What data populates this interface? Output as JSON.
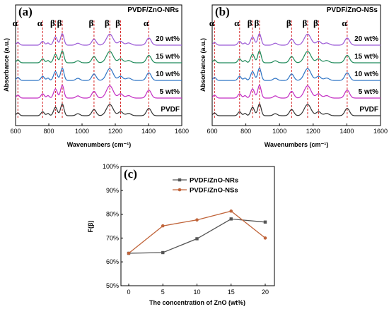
{
  "chart_data": [
    {
      "panel": "(a)",
      "type": "line",
      "title": "PVDF/ZnO-NRs",
      "xlabel": "Wavenumbers (cm⁻¹)",
      "ylabel": "Absorbance (a.u.)",
      "xlim": [
        600,
        1600
      ],
      "xticks": [
        "600",
        "800",
        "1000",
        "1200",
        "1400",
        "1600"
      ],
      "series_labels": [
        "20 wt%",
        "15 wt%",
        "10 wt%",
        "5 wt%",
        "PVDF"
      ],
      "colors": [
        "#9b59d6",
        "#1f8a5a",
        "#2d73c4",
        "#c32dc3",
        "#333333"
      ],
      "peak_lines": [
        {
          "x": 614,
          "label": "α"
        },
        {
          "x": 763,
          "label": "α"
        },
        {
          "x": 840,
          "label": "β"
        },
        {
          "x": 881,
          "label": "β"
        },
        {
          "x": 1072,
          "label": "β"
        },
        {
          "x": 1167,
          "label": "β"
        },
        {
          "x": 1232,
          "label": "β"
        },
        {
          "x": 1402,
          "label": "α"
        }
      ]
    },
    {
      "panel": "(b)",
      "type": "line",
      "title": "PVDF/ZnO-NSs",
      "xlabel": "Wavenumbers (cm⁻¹)",
      "ylabel": "Absorbance (a.u.)",
      "xlim": [
        600,
        1600
      ],
      "xticks": [
        "600",
        "800",
        "1000",
        "1200",
        "1400",
        "1600"
      ],
      "series_labels": [
        "20 wt%",
        "15 wt%",
        "10 wt%",
        "5 wt%",
        "PVDF"
      ],
      "colors": [
        "#9b59d6",
        "#1f8a5a",
        "#2d73c4",
        "#c32dc3",
        "#333333"
      ],
      "peak_lines": [
        {
          "x": 614,
          "label": "α"
        },
        {
          "x": 763,
          "label": "α"
        },
        {
          "x": 840,
          "label": "β"
        },
        {
          "x": 881,
          "label": "β"
        },
        {
          "x": 1072,
          "label": "β"
        },
        {
          "x": 1167,
          "label": "β"
        },
        {
          "x": 1232,
          "label": "β"
        },
        {
          "x": 1402,
          "label": "α"
        }
      ]
    },
    {
      "panel": "(c)",
      "type": "line",
      "xlabel": "The concentration of ZnO (wt%)",
      "ylabel": "F(β)",
      "x": [
        0,
        5,
        10,
        15,
        20
      ],
      "xticks": [
        "0",
        "5",
        "10",
        "15",
        "20"
      ],
      "yticks": [
        "50%",
        "60%",
        "70%",
        "80%",
        "90%",
        "100%"
      ],
      "ylim": [
        50,
        100
      ],
      "legend_position": "top-right",
      "series": [
        {
          "name": "PVDF/ZnO-NRs",
          "color": "#555555",
          "marker": "square",
          "values": [
            63.6,
            63.9,
            69.7,
            78.0,
            76.7
          ]
        },
        {
          "name": "PVDF/ZnO-NSs",
          "color": "#c0643a",
          "marker": "circle",
          "values": [
            63.6,
            75.1,
            77.6,
            81.3,
            70.0
          ]
        }
      ]
    }
  ]
}
